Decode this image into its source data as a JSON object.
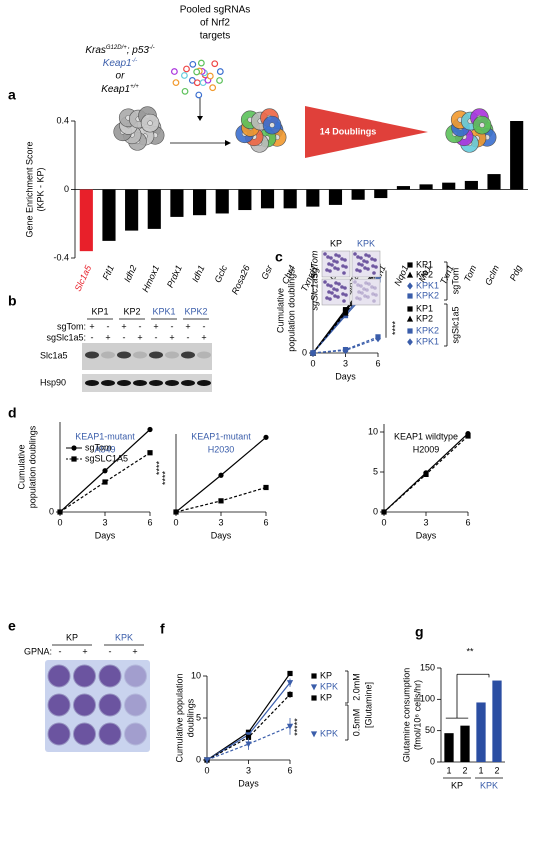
{
  "schematic": {
    "genotype": [
      "Kras",
      "G12D/+",
      "; p53",
      "-/-"
    ],
    "keap1_mutant": [
      "Keap1",
      "-/-"
    ],
    "or": "or",
    "keap1_wildtype": [
      "Keap1",
      "+/+"
    ],
    "highlight_color": "#3a5daa",
    "library": [
      "Pooled sgRNAs",
      "of Nrf2",
      "targets"
    ],
    "doublings": "14 Doublings"
  },
  "blot": {
    "panel": "b",
    "cell_lines": [
      "KP1",
      "KP2",
      "KPK1",
      "KPK2"
    ],
    "cell_line_colors": [
      "#000000",
      "#000000",
      "#3a5daa",
      "#3a5daa"
    ],
    "rows": [
      {
        "label": "sgTom:",
        "signs": [
          "+",
          "-",
          "+",
          "-",
          "+",
          "-",
          "+",
          "-"
        ]
      },
      {
        "label": "sgSlc1a5:",
        "signs": [
          "-",
          "+",
          "-",
          "+",
          "-",
          "+",
          "-",
          "+"
        ]
      }
    ],
    "proteins": [
      "Slc1a5",
      "Hsp90"
    ]
  },
  "wells": {
    "panel": "e",
    "groups": [
      "KP",
      "KPK"
    ],
    "group_colors": [
      "#000000",
      "#3a5daa"
    ],
    "treatment": "GPNA:",
    "signs": [
      "-",
      "+",
      "-",
      "+"
    ]
  },
  "chart_data": [
    {
      "panel": "a",
      "type": "bar",
      "ylabel": [
        "Gene Enrichment Score",
        "(KPK - KP)"
      ],
      "categories": [
        "Slc1a5",
        "Ftl1",
        "Idh2",
        "Hmox1",
        "Prdx1",
        "Idh1",
        "Gclc",
        "Rosa26",
        "Gsr",
        "Chr4",
        "Txnrd1",
        "Gpd2",
        "Slc7a11",
        "Fth1",
        "Nqo1",
        "Me1",
        "Txn1",
        "Tom",
        "Gclm",
        "Pdg"
      ],
      "values": [
        -0.36,
        -0.3,
        -0.24,
        -0.23,
        -0.16,
        -0.15,
        -0.14,
        -0.12,
        -0.11,
        -0.11,
        -0.1,
        -0.09,
        -0.06,
        -0.05,
        0.02,
        0.03,
        0.04,
        0.05,
        0.09,
        0.4
      ],
      "colors": [
        "#e8202a",
        "#000000",
        "#000000",
        "#000000",
        "#000000",
        "#000000",
        "#000000",
        "#000000",
        "#000000",
        "#000000",
        "#000000",
        "#000000",
        "#000000",
        "#000000",
        "#000000",
        "#000000",
        "#000000",
        "#000000",
        "#000000",
        "#000000"
      ],
      "ylim": [
        -0.4,
        0.4
      ],
      "yticks": [
        -0.4,
        0,
        0.4
      ]
    },
    {
      "panel": "c",
      "type": "line",
      "x": [
        0,
        3,
        6
      ],
      "xlim": [
        0,
        6
      ],
      "xticks": [
        0,
        3,
        6
      ],
      "ylim": [
        0,
        10
      ],
      "yticks": [
        0
      ],
      "xlabel": "Days",
      "ylabel": [
        "Cumulative",
        "population doublings"
      ],
      "inset": {
        "columns": [
          "KP",
          "KPK"
        ],
        "rows": [
          "sgTom",
          "sgSlc1a5"
        ]
      },
      "groups": [
        "sgTom",
        "sgSlc1a5"
      ],
      "annotation": "****",
      "series": [
        {
          "name": "KP1",
          "color": "#000000",
          "marker": "square",
          "linestyle": "solid",
          "values": [
            0,
            5.1,
            10.2
          ]
        },
        {
          "name": "KP2",
          "color": "#000000",
          "marker": "triangle",
          "linestyle": "solid",
          "values": [
            0,
            4.9,
            9.9
          ]
        },
        {
          "name": "KPK1",
          "color": "#3a5daa",
          "marker": "diamond",
          "linestyle": "solid",
          "values": [
            0,
            4.6,
            8.9
          ]
        },
        {
          "name": "KPK2",
          "color": "#3a5daa",
          "marker": "square",
          "linestyle": "solid",
          "values": [
            0,
            4.4,
            8.6
          ]
        },
        {
          "name": "KP1",
          "color": "#000000",
          "marker": "square",
          "linestyle": "dashed",
          "values": [
            0,
            4.9,
            10
          ]
        },
        {
          "name": "KP2",
          "color": "#000000",
          "marker": "triangle",
          "linestyle": "dashed",
          "values": [
            0,
            4.7,
            9.7
          ]
        },
        {
          "name": "KPK2",
          "color": "#3a5daa",
          "marker": "square",
          "linestyle": "dashed",
          "values": [
            0,
            0.4,
            1.9
          ]
        },
        {
          "name": "KPK1",
          "color": "#3a5daa",
          "marker": "diamond",
          "linestyle": "dashed",
          "values": [
            0,
            0.3,
            1.7
          ]
        }
      ]
    },
    {
      "panel": "d",
      "type": "line",
      "title": [
        "KEAP1-mutant",
        "A549"
      ],
      "title_color": "#3a5daa",
      "x": [
        0,
        3,
        6
      ],
      "xlim": [
        0,
        6
      ],
      "xticks": [
        0,
        3,
        6
      ],
      "ylim": [
        0,
        12
      ],
      "yticks": [
        0
      ],
      "xlabel": "Days",
      "ylabel": [
        "Cumulative",
        "population doublings"
      ],
      "annotation": "****",
      "series": [
        {
          "name": "sgTom",
          "color": "#000000",
          "marker": "circle",
          "linestyle": "solid",
          "values": [
            0,
            5.5,
            11
          ]
        },
        {
          "name": "sgSLC1A5",
          "color": "#000000",
          "marker": "square",
          "linestyle": "dashed",
          "values": [
            0,
            4,
            7.9
          ]
        }
      ]
    },
    {
      "type": "line",
      "title": [
        "KEAP1-mutant",
        "H2030"
      ],
      "title_color": "#3a5daa",
      "x": [
        0,
        3,
        6
      ],
      "xlim": [
        0,
        6
      ],
      "xticks": [
        0,
        3,
        6
      ],
      "ylim": [
        0,
        7
      ],
      "xlabel": "Days",
      "annotation": "****",
      "series": [
        {
          "color": "#000000",
          "marker": "circle",
          "linestyle": "solid",
          "values": [
            0,
            3.3,
            6.7
          ]
        },
        {
          "color": "#000000",
          "marker": "square",
          "linestyle": "dashed",
          "values": [
            0,
            1,
            2.2
          ]
        }
      ]
    },
    {
      "type": "line",
      "title": [
        "KEAP1 wildtype",
        "H2009"
      ],
      "title_color": "#000000",
      "x": [
        0,
        3,
        6
      ],
      "xlim": [
        0,
        6
      ],
      "xticks": [
        0,
        3,
        6
      ],
      "ylim": [
        0,
        11
      ],
      "yticks": [
        0,
        5,
        10
      ],
      "xlabel": "Days",
      "series": [
        {
          "color": "#000000",
          "marker": "circle",
          "linestyle": "solid",
          "values": [
            0,
            4.9,
            9.8
          ]
        },
        {
          "color": "#000000",
          "marker": "square",
          "linestyle": "dashed",
          "values": [
            0,
            4.7,
            9.5
          ]
        }
      ]
    },
    {
      "panel": "f",
      "type": "line",
      "x": [
        0,
        3,
        6
      ],
      "xlim": [
        0,
        6
      ],
      "xticks": [
        0,
        3,
        6
      ],
      "ylim": [
        0,
        10
      ],
      "yticks": [
        0,
        5,
        10
      ],
      "xlabel": "Days",
      "ylabel": [
        "Cumulative population",
        "doublings"
      ],
      "annotation": "*****",
      "concentrations": [
        "2.0mM",
        "0.5mM"
      ],
      "concentration_label": "[Glutamine]",
      "series": [
        {
          "name": "KP",
          "color": "#000000",
          "marker": "square",
          "linestyle": "solid",
          "values": [
            0,
            3.3,
            10.3
          ],
          "errors": [
            0,
            0.2,
            0.3
          ]
        },
        {
          "name": "KPK",
          "color": "#3a5daa",
          "marker": "triangle-down",
          "linestyle": "solid",
          "values": [
            0,
            3,
            9.2
          ],
          "errors": [
            0,
            0.2,
            0.5
          ]
        },
        {
          "name": "KP",
          "color": "#000000",
          "marker": "square",
          "linestyle": "dashed",
          "values": [
            0,
            2.7,
            7.8
          ],
          "errors": [
            0,
            0.2,
            0.4
          ]
        },
        {
          "name": "KPK",
          "color": "#3a5daa",
          "marker": "triangle-down",
          "linestyle": "dashed",
          "values": [
            0,
            1.9,
            4
          ],
          "errors": [
            0,
            0.7,
            1
          ]
        }
      ]
    },
    {
      "panel": "g",
      "type": "bar",
      "categories": [
        "1",
        "2",
        "1",
        "2"
      ],
      "groups": [
        "KP",
        "KPK"
      ],
      "group_colors": [
        "#000000",
        "#3a5daa"
      ],
      "values": [
        46,
        58,
        95,
        130
      ],
      "colors": [
        "#000000",
        "#000000",
        "#2b4ea2",
        "#2b4ea2"
      ],
      "ylim": [
        0,
        150
      ],
      "yticks": [
        0,
        50,
        100,
        150
      ],
      "ylabel": [
        "Glutamine consumption",
        "(fmol/10⁶ cells/hr)"
      ],
      "annotation": "**"
    }
  ]
}
